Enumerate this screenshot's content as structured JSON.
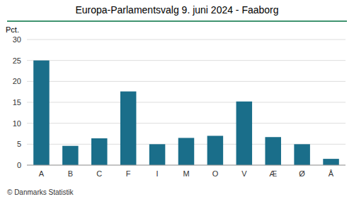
{
  "chart_data": {
    "type": "bar",
    "title": "Europa-Parlamentsvalg 9. juni 2024 - Faaborg",
    "ylabel": "Pct.",
    "footer": "© Danmarks Statistik",
    "categories": [
      "A",
      "B",
      "C",
      "F",
      "I",
      "M",
      "O",
      "V",
      "Æ",
      "Ø",
      "Å"
    ],
    "values": [
      25.0,
      4.6,
      6.4,
      17.6,
      5.0,
      6.5,
      7.0,
      15.2,
      6.7,
      5.0,
      1.5
    ],
    "color": "#1a6e8a",
    "ylim": [
      0,
      30
    ],
    "yticks": [
      0,
      5,
      10,
      15,
      20,
      25,
      30
    ],
    "grid": true
  }
}
